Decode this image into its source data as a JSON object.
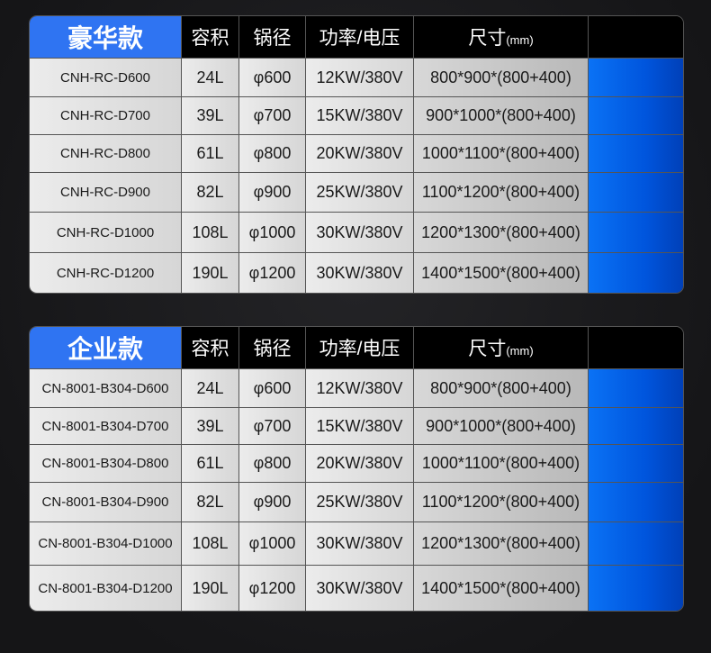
{
  "headers": [
    "容积",
    "锅径",
    "功率/电压",
    "尺寸"
  ],
  "size_unit": "(mm)",
  "colors": {
    "title_bg": "#2f74f2",
    "accent_blue": "#0a72f5",
    "header_bg": "#000000"
  },
  "tables": [
    {
      "title": "豪华款",
      "rows": [
        {
          "model": "CNH-RC-D600",
          "volume": "24L",
          "diameter": "φ600",
          "power": "12KW/380V",
          "size": "800*900*(800+400)"
        },
        {
          "model": "CNH-RC-D700",
          "volume": "39L",
          "diameter": "φ700",
          "power": "15KW/380V",
          "size": "900*1000*(800+400)"
        },
        {
          "model": "CNH-RC-D800",
          "volume": "61L",
          "diameter": "φ800",
          "power": "20KW/380V",
          "size": "1000*1100*(800+400)"
        },
        {
          "model": "CNH-RC-D900",
          "volume": "82L",
          "diameter": "φ900",
          "power": "25KW/380V",
          "size": "1100*1200*(800+400)"
        },
        {
          "model": "CNH-RC-D1000",
          "volume": "108L",
          "diameter": "φ1000",
          "power": "30KW/380V",
          "size": "1200*1300*(800+400)"
        },
        {
          "model": "CNH-RC-D1200",
          "volume": "190L",
          "diameter": "φ1200",
          "power": "30KW/380V",
          "size": "1400*1500*(800+400)"
        }
      ]
    },
    {
      "title": "企业款",
      "rows": [
        {
          "model": "CN-8001-B304-D600",
          "volume": "24L",
          "diameter": "φ600",
          "power": "12KW/380V",
          "size": "800*900*(800+400)"
        },
        {
          "model": "CN-8001-B304-D700",
          "volume": "39L",
          "diameter": "φ700",
          "power": "15KW/380V",
          "size": "900*1000*(800+400)"
        },
        {
          "model": "CN-8001-B304-D800",
          "volume": "61L",
          "diameter": "φ800",
          "power": "20KW/380V",
          "size": "1000*1100*(800+400)"
        },
        {
          "model": "CN-8001-B304-D900",
          "volume": "82L",
          "diameter": "φ900",
          "power": "25KW/380V",
          "size": "1100*1200*(800+400)"
        },
        {
          "model": "CN-8001-B304-D1000",
          "volume": "108L",
          "diameter": "φ1000",
          "power": "30KW/380V",
          "size": "1200*1300*(800+400)"
        },
        {
          "model": "CN-8001-B304-D1200",
          "volume": "190L",
          "diameter": "φ1200",
          "power": "30KW/380V",
          "size": "1400*1500*(800+400)"
        }
      ]
    }
  ]
}
